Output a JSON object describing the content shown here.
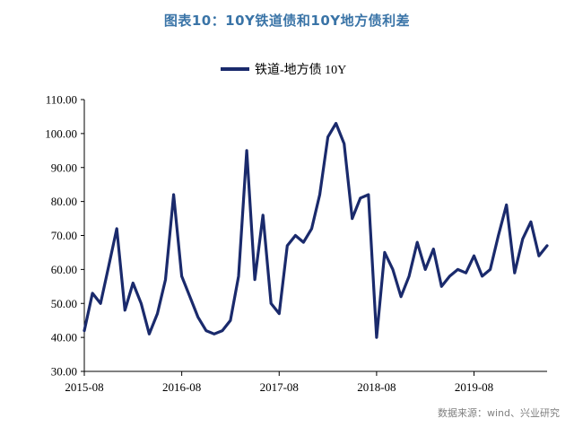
{
  "header": {
    "title": "图表10：10Y铁道债和10Y地方债利差"
  },
  "footer": {
    "source": "数据来源：wind、兴业研究"
  },
  "colors": {
    "series": "#1a2a6c",
    "title": "#3a74a7",
    "source": "#808080"
  },
  "chart_data": {
    "type": "line",
    "title": "图表10：10Y铁道债和10Y地方债利差",
    "xlabel": "",
    "ylabel": "",
    "ylim": [
      30,
      110
    ],
    "yticks": [
      30,
      40,
      50,
      60,
      70,
      80,
      90,
      100,
      110
    ],
    "ytick_labels": [
      "30.00",
      "40.00",
      "50.00",
      "60.00",
      "70.00",
      "80.00",
      "90.00",
      "100.00",
      "110.00"
    ],
    "xlim": [
      "2015-08",
      "2020-05"
    ],
    "xticks": [
      "2015-08",
      "2016-08",
      "2017-08",
      "2018-08",
      "2019-08"
    ],
    "grid": false,
    "legend": "top-center",
    "series": [
      {
        "name": "铁道-地方债 10Y",
        "points": [
          [
            "2015-08",
            42
          ],
          [
            "2015-09",
            53
          ],
          [
            "2015-10",
            50
          ],
          [
            "2015-11",
            61
          ],
          [
            "2015-12",
            72
          ],
          [
            "2016-01",
            48
          ],
          [
            "2016-02",
            56
          ],
          [
            "2016-03",
            50
          ],
          [
            "2016-04",
            41
          ],
          [
            "2016-05",
            47
          ],
          [
            "2016-06",
            57
          ],
          [
            "2016-07",
            82
          ],
          [
            "2016-08",
            58
          ],
          [
            "2016-09",
            52
          ],
          [
            "2016-10",
            46
          ],
          [
            "2016-11",
            42
          ],
          [
            "2016-12",
            41
          ],
          [
            "2017-01",
            42
          ],
          [
            "2017-02",
            45
          ],
          [
            "2017-03",
            58
          ],
          [
            "2017-04",
            95
          ],
          [
            "2017-05",
            57
          ],
          [
            "2017-06",
            76
          ],
          [
            "2017-07",
            50
          ],
          [
            "2017-08",
            47
          ],
          [
            "2017-09",
            67
          ],
          [
            "2017-10",
            70
          ],
          [
            "2017-11",
            68
          ],
          [
            "2017-12",
            72
          ],
          [
            "2018-01",
            82
          ],
          [
            "2018-02",
            99
          ],
          [
            "2018-03",
            103
          ],
          [
            "2018-04",
            97
          ],
          [
            "2018-05",
            75
          ],
          [
            "2018-06",
            81
          ],
          [
            "2018-07",
            82
          ],
          [
            "2018-08",
            40
          ],
          [
            "2018-09",
            65
          ],
          [
            "2018-10",
            60
          ],
          [
            "2018-11",
            52
          ],
          [
            "2018-12",
            58
          ],
          [
            "2019-01",
            68
          ],
          [
            "2019-02",
            60
          ],
          [
            "2019-03",
            66
          ],
          [
            "2019-04",
            55
          ],
          [
            "2019-05",
            58
          ],
          [
            "2019-06",
            60
          ],
          [
            "2019-07",
            59
          ],
          [
            "2019-08",
            64
          ],
          [
            "2019-09",
            58
          ],
          [
            "2019-10",
            60
          ],
          [
            "2019-11",
            70
          ],
          [
            "2019-12",
            79
          ],
          [
            "2020-01",
            59
          ],
          [
            "2020-02",
            69
          ],
          [
            "2020-03",
            74
          ],
          [
            "2020-04",
            64
          ],
          [
            "2020-05",
            67
          ]
        ]
      }
    ]
  }
}
